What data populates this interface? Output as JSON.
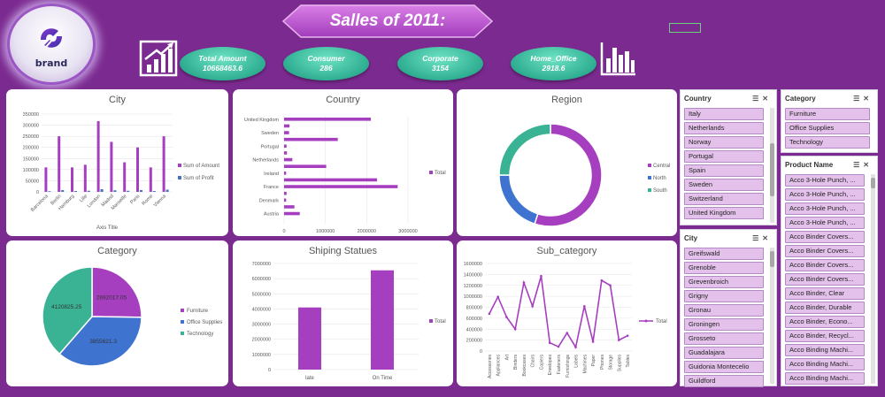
{
  "brand": {
    "name": "brand"
  },
  "title": "Salles of 2011:",
  "kpis": [
    {
      "label": "Total Amount",
      "value": "10668463.6"
    },
    {
      "label": "Consumer",
      "value": "286"
    },
    {
      "label": "Corporate",
      "value": "3154"
    },
    {
      "label": "Home_Office",
      "value": "2918.6"
    }
  ],
  "icons": {
    "left": "bar-chart-growth-icon",
    "right": "bar-chart-icon"
  },
  "colors": {
    "background": "#7b2a8f",
    "amount": "#a63ec0",
    "profit": "#4472c4",
    "teal": "#3ab394",
    "blue": "#3e74d0"
  },
  "charts": {
    "city": {
      "title": "City",
      "chart_data": {
        "type": "bar",
        "categories": [
          "Barcelona",
          "Berlin",
          "Hamburg",
          "Lille",
          "London",
          "Madrid",
          "Marseille",
          "Paris",
          "Rome",
          "Vienna"
        ],
        "series": [
          {
            "name": "Sum of Amount",
            "values": [
              110000,
              250000,
              110000,
              122000,
              318000,
              225000,
              133000,
              200000,
              110000,
              250000
            ]
          },
          {
            "name": "Sum of Profit",
            "values": [
              3000,
              8000,
              4000,
              5000,
              12000,
              7000,
              5000,
              8000,
              4000,
              10000
            ]
          }
        ],
        "ylim": [
          0,
          350000
        ],
        "yticks": [
          "0",
          "50000",
          "100000",
          "150000",
          "200000",
          "250000",
          "300000",
          "350000"
        ],
        "xlabel": "Axis Title"
      }
    },
    "country": {
      "title": "Country",
      "chart_data": {
        "type": "bar",
        "orientation": "horizontal",
        "categories": [
          "United Kingdom",
          "",
          "Sweden",
          "",
          "Portugal",
          "",
          "Netherlands",
          "",
          "Ireland",
          "",
          "France",
          "",
          "Denmark",
          "",
          "Austria",
          ""
        ],
        "series": [
          {
            "name": "Total",
            "values": [
              2100000,
              130000,
              120000,
              1300000,
              60000,
              70000,
              200000,
              1020000,
              50000,
              2250000,
              2750000,
              60000,
              50000,
              250000,
              380000,
              0
            ]
          }
        ],
        "xlim": [
          0,
          3000000
        ],
        "xticks": [
          "0",
          "1000000",
          "2000000",
          "3000000"
        ]
      }
    },
    "region": {
      "title": "Region",
      "chart_data": {
        "type": "pie",
        "style": "doughnut",
        "categories": [
          "Central",
          "North",
          "South"
        ],
        "values": [
          55,
          20,
          25
        ],
        "legend": "right"
      }
    },
    "category": {
      "title": "Category",
      "chart_data": {
        "type": "pie",
        "categories": [
          "Furniture",
          "Office Supplies",
          "Technology"
        ],
        "values": [
          2692017.05,
          3855621.3,
          4120825.25
        ],
        "data_labels": [
          "2692017.05",
          "3855621.3",
          "4120825.25"
        ],
        "legend": "right"
      }
    },
    "shipping": {
      "title": "Shiping Statues",
      "chart_data": {
        "type": "bar",
        "categories": [
          "late",
          "On Time"
        ],
        "series": [
          {
            "name": "Total",
            "values": [
              4100000,
              6550000
            ]
          }
        ],
        "ylim": [
          0,
          7000000
        ],
        "yticks": [
          "0",
          "1000000",
          "2000000",
          "3000000",
          "4000000",
          "5000000",
          "6000000",
          "7000000"
        ]
      }
    },
    "subcategory": {
      "title": "Sub_category",
      "chart_data": {
        "type": "line",
        "categories": [
          "Accessories",
          "Appliances",
          "Art",
          "Binders",
          "Bookcases",
          "Chairs",
          "Copiers",
          "Envelopes",
          "Fasteners",
          "Furnishings",
          "Labels",
          "Machines",
          "Paper",
          "Phones",
          "Storage",
          "Supplies",
          "Tables"
        ],
        "series": [
          {
            "name": "Total",
            "values": [
              680000,
              990000,
              620000,
              400000,
              1250000,
              820000,
              1370000,
              150000,
              80000,
              330000,
              70000,
              820000,
              170000,
              1290000,
              1200000,
              200000,
              280000
            ]
          }
        ],
        "ylim": [
          0,
          1600000
        ],
        "yticks": [
          "0",
          "200000",
          "400000",
          "600000",
          "800000",
          "1000000",
          "1200000",
          "1400000",
          "1600000"
        ]
      }
    }
  },
  "slicers": {
    "country": {
      "title": "Country",
      "items": [
        "Italy",
        "Netherlands",
        "Norway",
        "Portugal",
        "Spain",
        "Sweden",
        "Switzerland",
        "United Kingdom"
      ]
    },
    "city": {
      "title": "City",
      "items": [
        "Greifswald",
        "Grenoble",
        "Grevenbroich",
        "Grigny",
        "Gronau",
        "Groningen",
        "Grosseto",
        "Guadalajara",
        "Guidonia Montecelio",
        "Guildford"
      ]
    },
    "category": {
      "title": "Category",
      "items": [
        "Furniture",
        "Office Supplies",
        "Technology"
      ]
    },
    "product": {
      "title": "Product Name",
      "items": [
        "Acco 3-Hole Punch, ...",
        "Acco 3-Hole Punch, ...",
        "Acco 3-Hole Punch, ...",
        "Acco 3-Hole Punch, ...",
        "Acco Binder Covers...",
        "Acco Binder Covers...",
        "Acco Binder Covers...",
        "Acco Binder Covers...",
        "Acco Binder, Clear",
        "Acco Binder, Durable",
        "Acco Binder, Econo...",
        "Acco Binder, Recycl...",
        "Acco Binding Machi...",
        "Acco Binding Machi...",
        "Acco Binding Machi..."
      ]
    }
  }
}
